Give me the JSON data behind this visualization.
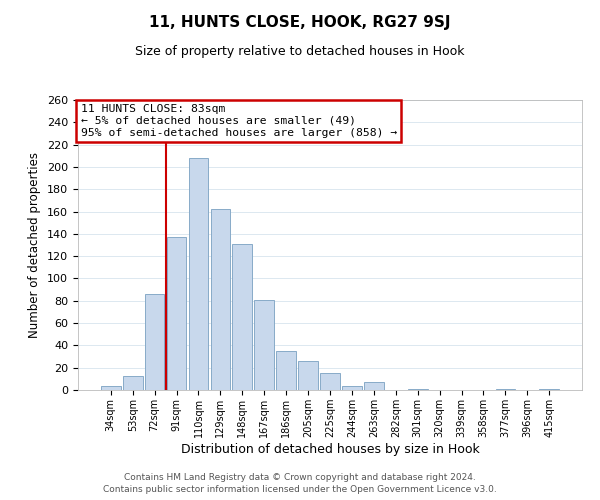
{
  "title": "11, HUNTS CLOSE, HOOK, RG27 9SJ",
  "subtitle": "Size of property relative to detached houses in Hook",
  "xlabel": "Distribution of detached houses by size in Hook",
  "ylabel": "Number of detached properties",
  "bar_labels": [
    "34sqm",
    "53sqm",
    "72sqm",
    "91sqm",
    "110sqm",
    "129sqm",
    "148sqm",
    "167sqm",
    "186sqm",
    "205sqm",
    "225sqm",
    "244sqm",
    "263sqm",
    "282sqm",
    "301sqm",
    "320sqm",
    "339sqm",
    "358sqm",
    "377sqm",
    "396sqm",
    "415sqm"
  ],
  "bar_values": [
    4,
    13,
    86,
    137,
    208,
    162,
    131,
    81,
    35,
    26,
    15,
    4,
    7,
    0,
    1,
    0,
    0,
    0,
    1,
    0,
    1
  ],
  "bar_color": "#c8d8ec",
  "bar_edge_color": "#88aac8",
  "ylim": [
    0,
    260
  ],
  "yticks": [
    0,
    20,
    40,
    60,
    80,
    100,
    120,
    140,
    160,
    180,
    200,
    220,
    240,
    260
  ],
  "marker_line_color": "#cc0000",
  "annotation_line1": "11 HUNTS CLOSE: 83sqm",
  "annotation_line2": "← 5% of detached houses are smaller (49)",
  "annotation_line3": "95% of semi-detached houses are larger (858) →",
  "annotation_box_edge_color": "#cc0000",
  "footer1": "Contains HM Land Registry data © Crown copyright and database right 2024.",
  "footer2": "Contains public sector information licensed under the Open Government Licence v3.0.",
  "background_color": "#ffffff",
  "grid_color": "#dce8f0"
}
